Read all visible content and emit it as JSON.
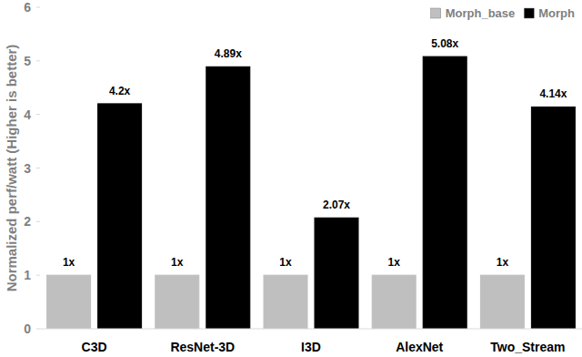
{
  "chart_data": {
    "type": "bar",
    "y_label": "Normalized perf/watt (Higher is better)",
    "categories": [
      "C3D",
      "ResNet-3D",
      "I3D",
      "AlexNet",
      "Two_Stream"
    ],
    "series": [
      {
        "name": "Morph_base",
        "color": "#bfbfbf",
        "values": [
          1,
          1,
          1,
          1,
          1
        ],
        "value_labels": [
          "1x",
          "1x",
          "1x",
          "1x",
          "1x"
        ]
      },
      {
        "name": "Morph",
        "color": "#000000",
        "values": [
          4.2,
          4.89,
          2.07,
          5.08,
          4.14
        ],
        "value_labels": [
          "4.2x",
          "4.89x",
          "2.07x",
          "5.08x",
          "4.14x"
        ]
      }
    ],
    "ylim": [
      0,
      6
    ],
    "yticks": [
      0,
      1,
      2,
      3,
      4,
      5,
      6
    ],
    "grid": false,
    "legend": "top-right",
    "data_labels": true
  }
}
